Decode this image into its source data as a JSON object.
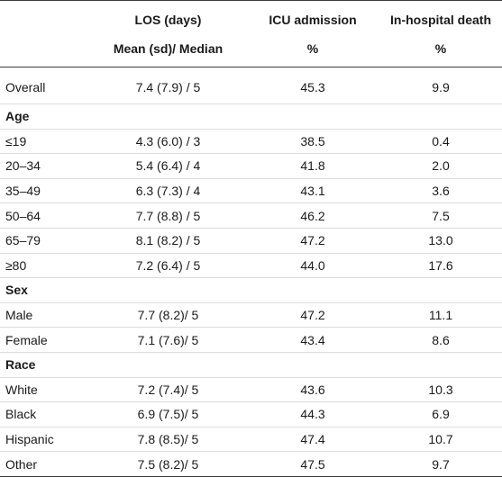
{
  "header": {
    "col_los_line1": "LOS (days)",
    "col_los_line2": "Mean (sd)/ Median",
    "col_icu_line1": "ICU admission",
    "col_icu_line2": "%",
    "col_death_line1": "In-hospital death",
    "col_death_line2": "%"
  },
  "overall": {
    "label": "Overall",
    "los": "7.4 (7.9) / 5",
    "icu": "45.3",
    "death": "9.9"
  },
  "sections": [
    {
      "title": "Age",
      "rows": [
        {
          "label": "≤19",
          "los": "4.3 (6.0) / 3",
          "icu": "38.5",
          "death": "0.4"
        },
        {
          "label": "20–34",
          "los": "5.4 (6.4) / 4",
          "icu": "41.8",
          "death": "2.0"
        },
        {
          "label": "35–49",
          "los": "6.3 (7.3) / 4",
          "icu": "43.1",
          "death": "3.6"
        },
        {
          "label": "50–64",
          "los": "7.7 (8.8) / 5",
          "icu": "46.2",
          "death": "7.5"
        },
        {
          "label": "65–79",
          "los": "8.1 (8.2) / 5",
          "icu": "47.2",
          "death": "13.0"
        },
        {
          "label": "≥80",
          "los": "7.2 (6.4) / 5",
          "icu": "44.0",
          "death": "17.6"
        }
      ]
    },
    {
      "title": "Sex",
      "rows": [
        {
          "label": "Male",
          "los": "7.7 (8.2)/ 5",
          "icu": "47.2",
          "death": "11.1"
        },
        {
          "label": "Female",
          "los": "7.1 (7.6)/ 5",
          "icu": "43.4",
          "death": "8.6"
        }
      ]
    },
    {
      "title": "Race",
      "rows": [
        {
          "label": "White",
          "los": "7.2 (7.4)/ 5",
          "icu": "43.6",
          "death": "10.3"
        },
        {
          "label": "Black",
          "los": "6.9 (7.5)/ 5",
          "icu": "44.3",
          "death": "6.9"
        },
        {
          "label": "Hispanic",
          "los": "7.8 (8.5)/ 5",
          "icu": "47.4",
          "death": "10.7"
        },
        {
          "label": "Other",
          "los": "7.5 (8.2)/ 5",
          "icu": "47.5",
          "death": "9.7"
        }
      ]
    }
  ]
}
